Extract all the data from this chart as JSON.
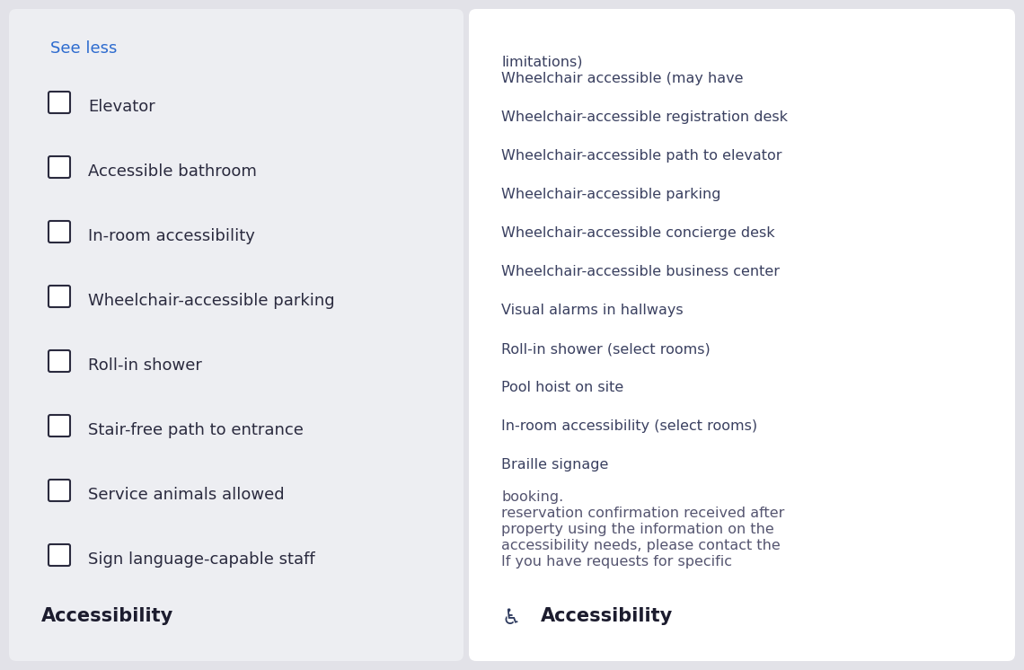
{
  "background_color": "#e2e2e8",
  "left_panel_bg": "#edeef2",
  "right_panel_bg": "#ffffff",
  "left_panel": {
    "title": "Accessibility",
    "title_color": "#1c1c2e",
    "title_fontsize": 15,
    "items": [
      "Sign language-capable staff",
      "Service animals allowed",
      "Stair-free path to entrance",
      "Roll-in shower",
      "Wheelchair-accessible parking",
      "In-room accessibility",
      "Accessible bathroom",
      "Elevator"
    ],
    "item_color": "#2a2a3e",
    "item_fontsize": 13,
    "see_less_text": "See less",
    "see_less_color": "#2d6bcf",
    "see_less_fontsize": 13,
    "checkbox_edge_color": "#2a2a3e"
  },
  "right_panel": {
    "icon_color": "#2d3a5e",
    "title": "Accessibility",
    "title_color": "#1c1c2e",
    "title_fontsize": 15,
    "description_lines": [
      "If you have requests for specific",
      "accessibility needs, please contact the",
      "property using the information on the",
      "reservation confirmation received after",
      "booking."
    ],
    "description_color": "#555570",
    "description_fontsize": 11.5,
    "items": [
      "Braille signage",
      "In-room accessibility (select rooms)",
      "Pool hoist on site",
      "Roll-in shower (select rooms)",
      "Visual alarms in hallways",
      "Wheelchair-accessible business center",
      "Wheelchair-accessible concierge desk",
      "Wheelchair-accessible parking",
      "Wheelchair-accessible path to elevator",
      "Wheelchair-accessible registration desk",
      "Wheelchair accessible (may have",
      "limitations)"
    ],
    "item_color": "#3a4060",
    "item_fontsize": 11.5
  }
}
